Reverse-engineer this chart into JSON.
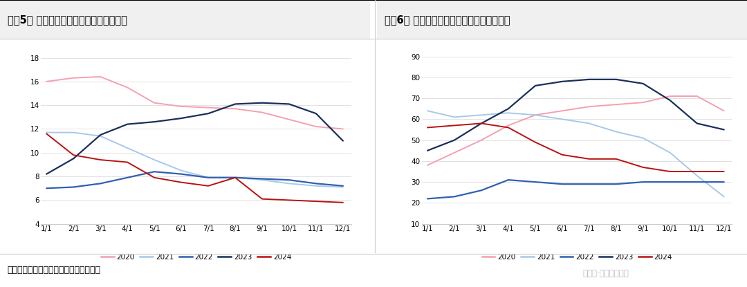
{
  "chart1_title": "图袅5： 天然橡胶青岛保税区库存（万吨）",
  "chart2_title": "图袅6： 天然橡胶青岛一般贸易库存（万吨）",
  "footer": "数据来源：锃联，广发期货发展研究中心",
  "watermark": "公众号·广发期货研究",
  "colors": {
    "2020": "#f4a0b0",
    "2021": "#a8c8e8",
    "2022": "#3060b0",
    "2023": "#1a2e5a",
    "2024": "#bb1010"
  },
  "x_labels": [
    "1/1",
    "2/1",
    "3/1",
    "4/1",
    "5/1",
    "6/1",
    "7/1",
    "8/1",
    "9/1",
    "10/1",
    "11/1",
    "12/1"
  ],
  "chart1": {
    "ylim": [
      4,
      19
    ],
    "yticks": [
      4,
      6,
      8,
      10,
      12,
      14,
      16,
      18
    ],
    "2020": [
      16.0,
      16.3,
      16.4,
      15.5,
      14.2,
      13.9,
      13.8,
      13.7,
      13.4,
      12.8,
      12.2,
      12.0
    ],
    "2021": [
      11.7,
      11.7,
      11.4,
      10.4,
      9.4,
      8.5,
      7.9,
      7.9,
      7.7,
      7.4,
      7.2,
      7.1
    ],
    "2022": [
      7.0,
      7.1,
      7.4,
      7.9,
      8.4,
      8.2,
      7.9,
      7.9,
      7.8,
      7.7,
      7.4,
      7.2
    ],
    "2023": [
      8.2,
      9.5,
      11.5,
      12.4,
      12.6,
      12.9,
      13.3,
      14.1,
      14.2,
      14.1,
      13.3,
      11.0
    ],
    "2024": [
      11.6,
      9.8,
      9.4,
      9.2,
      7.9,
      7.5,
      7.2,
      7.9,
      6.1,
      6.0,
      5.9,
      5.8
    ]
  },
  "chart2": {
    "ylim": [
      10,
      95
    ],
    "yticks": [
      10,
      20,
      30,
      40,
      50,
      60,
      70,
      80,
      90
    ],
    "2020": [
      38,
      44,
      50,
      57,
      62,
      64,
      66,
      67,
      68,
      71,
      71,
      64
    ],
    "2021": [
      64,
      61,
      62,
      63,
      62,
      60,
      58,
      54,
      51,
      44,
      33,
      23
    ],
    "2022": [
      22,
      23,
      26,
      31,
      30,
      29,
      29,
      29,
      30,
      30,
      30,
      30
    ],
    "2023": [
      45,
      50,
      58,
      65,
      76,
      78,
      79,
      79,
      77,
      69,
      58,
      55
    ],
    "2024": [
      56,
      57,
      58,
      56,
      49,
      43,
      41,
      41,
      37,
      35,
      35,
      35
    ]
  }
}
